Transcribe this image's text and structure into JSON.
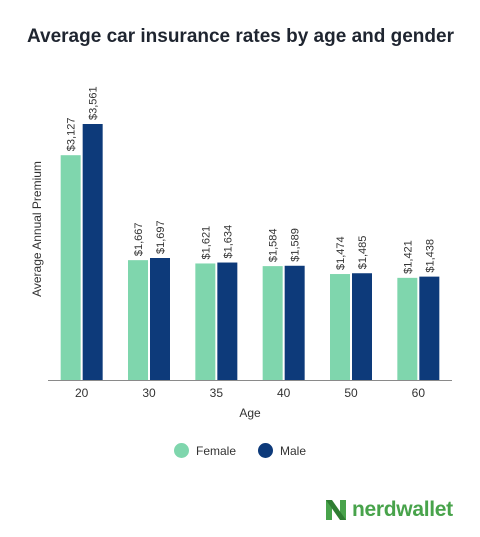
{
  "chart_data": {
    "type": "bar",
    "title": "Average car insurance rates by age and gender",
    "xlabel": "Age",
    "ylabel": "Average Annual Premium",
    "categories": [
      "20",
      "30",
      "35",
      "40",
      "50",
      "60"
    ],
    "series": [
      {
        "name": "Female",
        "color": "#7fd6ad",
        "values": [
          3127,
          1667,
          1621,
          1584,
          1474,
          1421
        ],
        "labels": [
          "$3,127",
          "$1,667",
          "$1,621",
          "$1,584",
          "$1,474",
          "$1,421"
        ]
      },
      {
        "name": "Male",
        "color": "#0d3a7a",
        "values": [
          3561,
          1697,
          1634,
          1589,
          1485,
          1438
        ],
        "labels": [
          "$3,561",
          "$1,697",
          "$1,634",
          "$1,589",
          "$1,485",
          "$1,438"
        ]
      }
    ],
    "ylim": [
      0,
      3561
    ],
    "grid": false,
    "legend_position": "bottom-center"
  },
  "brand": {
    "name": "nerdwallet",
    "logo_icon": "nerdwallet-n-logo-icon",
    "color": "#48a34b"
  }
}
